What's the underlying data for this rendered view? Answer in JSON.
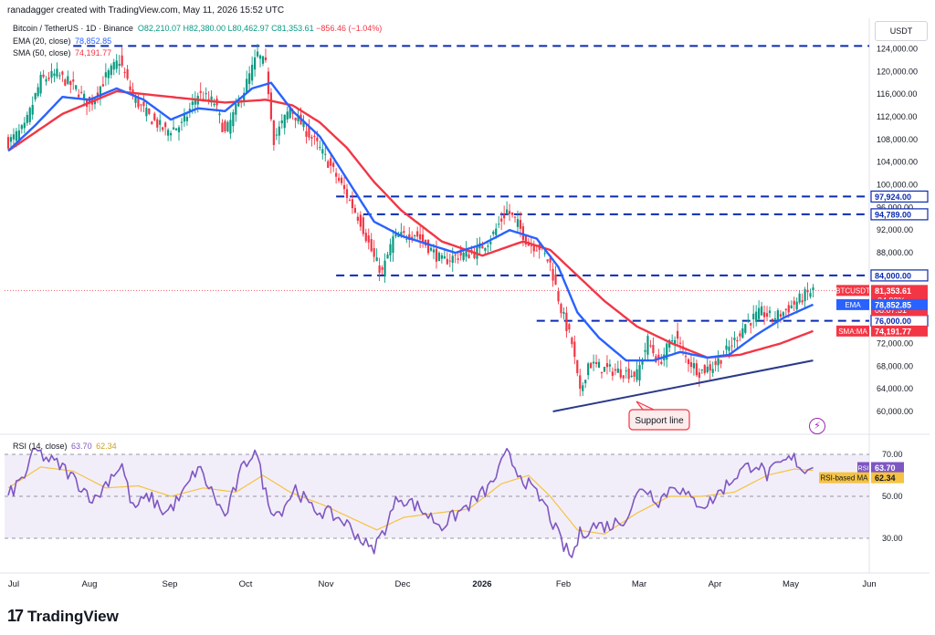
{
  "attribution": "ranadagger created with TradingView.com, May 11, 2026 15:52 UTC",
  "header": {
    "symbol": "Bitcoin / TetherUS · 1D · Binance",
    "ohlc": {
      "o": "O82,210.07",
      "h": "H82,380.00",
      "l": "L80,462.97",
      "c": "C81,353.61",
      "chg": "−856.46 (−1.04%)"
    },
    "ema_label": "EMA (20, close)",
    "ema_value": "78,852.85",
    "sma_label": "SMA (50, close)",
    "sma_value": "74,191.77",
    "rsi_label": "RSI (14, close)",
    "rsi_value": "63.70",
    "rsi_ma_value": "62.34"
  },
  "currency": "USDT",
  "brand": "TradingView",
  "colors": {
    "up": "#089981",
    "down": "#f23645",
    "ema": "#2962ff",
    "sma": "#f23645",
    "rsi": "#7e57c2",
    "rsi_ma": "#f5c242",
    "level": "#0b2bb0",
    "support": "#2a3a8a"
  },
  "icons": {
    "brand_logo": "tradingview-logo-icon",
    "alert": "lightning-alert-icon"
  },
  "chart_data": [
    {
      "type": "candlestick",
      "title": "Bitcoin / TetherUS · 1D · Binance",
      "x_ticks": [
        "Jul",
        "Aug",
        "Sep",
        "Oct",
        "Nov",
        "Dec",
        "2026",
        "Feb",
        "Mar",
        "Apr",
        "May",
        "Jun"
      ],
      "y_ticks": [
        "60,000.00",
        "64,000.00",
        "68,000.00",
        "72,000.00",
        "76,000.00",
        "80,000.00",
        "84,000.00",
        "88,000.00",
        "92,000.00",
        "96,000.00",
        "100,000.00",
        "104,000.00",
        "108,000.00",
        "112,000.00",
        "116,000.00",
        "120,000.00",
        "124,000.00"
      ],
      "ylim": [
        57000,
        127500
      ],
      "close_path": [
        {
          "d": 0,
          "p": 107500
        },
        {
          "d": 6,
          "p": 110000
        },
        {
          "d": 12,
          "p": 118500
        },
        {
          "d": 18,
          "p": 119500
        },
        {
          "d": 25,
          "p": 117000
        },
        {
          "d": 30,
          "p": 114000
        },
        {
          "d": 36,
          "p": 119000
        },
        {
          "d": 41,
          "p": 122000
        },
        {
          "d": 46,
          "p": 115500
        },
        {
          "d": 52,
          "p": 112000
        },
        {
          "d": 58,
          "p": 109500
        },
        {
          "d": 64,
          "p": 110500
        },
        {
          "d": 70,
          "p": 116000
        },
        {
          "d": 76,
          "p": 114500
        },
        {
          "d": 80,
          "p": 109000
        },
        {
          "d": 86,
          "p": 115500
        },
        {
          "d": 92,
          "p": 123000
        },
        {
          "d": 95,
          "p": 121000
        },
        {
          "d": 98,
          "p": 108000
        },
        {
          "d": 104,
          "p": 113500
        },
        {
          "d": 110,
          "p": 109500
        },
        {
          "d": 114,
          "p": 107000
        },
        {
          "d": 118,
          "p": 104000
        },
        {
          "d": 124,
          "p": 99000
        },
        {
          "d": 130,
          "p": 93500
        },
        {
          "d": 135,
          "p": 87000
        },
        {
          "d": 138,
          "p": 84500
        },
        {
          "d": 142,
          "p": 90500
        },
        {
          "d": 150,
          "p": 91500
        },
        {
          "d": 155,
          "p": 89000
        },
        {
          "d": 160,
          "p": 86500
        },
        {
          "d": 166,
          "p": 87500
        },
        {
          "d": 172,
          "p": 88000
        },
        {
          "d": 178,
          "p": 90500
        },
        {
          "d": 184,
          "p": 95500
        },
        {
          "d": 188,
          "p": 93000
        },
        {
          "d": 192,
          "p": 89500
        },
        {
          "d": 196,
          "p": 89000
        },
        {
          "d": 200,
          "p": 86000
        },
        {
          "d": 204,
          "p": 78000
        },
        {
          "d": 208,
          "p": 72000
        },
        {
          "d": 211,
          "p": 63000
        },
        {
          "d": 214,
          "p": 68500
        },
        {
          "d": 220,
          "p": 67500
        },
        {
          "d": 226,
          "p": 67000
        },
        {
          "d": 232,
          "p": 66500
        },
        {
          "d": 236,
          "p": 72500
        },
        {
          "d": 240,
          "p": 68500
        },
        {
          "d": 246,
          "p": 73500
        },
        {
          "d": 250,
          "p": 69500
        },
        {
          "d": 255,
          "p": 67000
        },
        {
          "d": 260,
          "p": 68000
        },
        {
          "d": 264,
          "p": 70000
        },
        {
          "d": 268,
          "p": 72500
        },
        {
          "d": 272,
          "p": 75500
        },
        {
          "d": 278,
          "p": 77500
        },
        {
          "d": 282,
          "p": 76500
        },
        {
          "d": 286,
          "p": 77500
        },
        {
          "d": 290,
          "p": 79000
        },
        {
          "d": 294,
          "p": 80500
        },
        {
          "d": 297,
          "p": 81354
        }
      ],
      "ema20_path": [
        {
          "d": 0,
          "p": 106000
        },
        {
          "d": 10,
          "p": 110500
        },
        {
          "d": 20,
          "p": 115500
        },
        {
          "d": 30,
          "p": 115000
        },
        {
          "d": 40,
          "p": 117000
        },
        {
          "d": 50,
          "p": 115000
        },
        {
          "d": 60,
          "p": 111500
        },
        {
          "d": 70,
          "p": 113500
        },
        {
          "d": 80,
          "p": 113000
        },
        {
          "d": 90,
          "p": 117000
        },
        {
          "d": 97,
          "p": 118000
        },
        {
          "d": 105,
          "p": 113000
        },
        {
          "d": 115,
          "p": 108500
        },
        {
          "d": 125,
          "p": 101000
        },
        {
          "d": 135,
          "p": 93500
        },
        {
          "d": 145,
          "p": 91000
        },
        {
          "d": 155,
          "p": 89500
        },
        {
          "d": 165,
          "p": 88000
        },
        {
          "d": 175,
          "p": 89500
        },
        {
          "d": 185,
          "p": 92000
        },
        {
          "d": 195,
          "p": 90500
        },
        {
          "d": 203,
          "p": 85500
        },
        {
          "d": 210,
          "p": 77500
        },
        {
          "d": 218,
          "p": 73000
        },
        {
          "d": 228,
          "p": 69000
        },
        {
          "d": 238,
          "p": 69000
        },
        {
          "d": 248,
          "p": 70500
        },
        {
          "d": 258,
          "p": 69500
        },
        {
          "d": 266,
          "p": 70000
        },
        {
          "d": 276,
          "p": 73500
        },
        {
          "d": 286,
          "p": 76500
        },
        {
          "d": 297,
          "p": 78853
        }
      ],
      "sma50_path": [
        {
          "d": 0,
          "p": 106000
        },
        {
          "d": 20,
          "p": 112500
        },
        {
          "d": 40,
          "p": 116500
        },
        {
          "d": 60,
          "p": 115500
        },
        {
          "d": 80,
          "p": 114500
        },
        {
          "d": 95,
          "p": 115000
        },
        {
          "d": 105,
          "p": 114000
        },
        {
          "d": 115,
          "p": 111000
        },
        {
          "d": 125,
          "p": 106500
        },
        {
          "d": 135,
          "p": 100500
        },
        {
          "d": 145,
          "p": 95500
        },
        {
          "d": 160,
          "p": 90000
        },
        {
          "d": 175,
          "p": 87500
        },
        {
          "d": 190,
          "p": 90000
        },
        {
          "d": 200,
          "p": 88500
        },
        {
          "d": 210,
          "p": 84000
        },
        {
          "d": 220,
          "p": 79500
        },
        {
          "d": 232,
          "p": 75000
        },
        {
          "d": 245,
          "p": 72000
        },
        {
          "d": 258,
          "p": 69500
        },
        {
          "d": 270,
          "p": 70000
        },
        {
          "d": 285,
          "p": 72000
        },
        {
          "d": 297,
          "p": 74192
        }
      ],
      "levels": [
        {
          "price": 124500,
          "from_day": 24,
          "to_day": 300
        },
        {
          "price": 97924,
          "from_day": 121,
          "to_day": 300,
          "label": "97,924.00"
        },
        {
          "price": 94789,
          "from_day": 131,
          "to_day": 300,
          "label": "94,789.00"
        },
        {
          "price": 84000,
          "from_day": 121,
          "to_day": 300,
          "label": "84,000.00"
        },
        {
          "price": 76000,
          "from_day": 195,
          "to_day": 300,
          "label": "76,000.00"
        }
      ],
      "support_line": {
        "from": {
          "d": 201,
          "p": 60000
        },
        "to": {
          "d": 297,
          "p": 69000
        },
        "label": "Support line"
      },
      "price_tags": [
        {
          "name": "BTCUSDT",
          "price": 81353.61,
          "value": "81,353.61",
          "sub": "-24.92%",
          "sub2": "08:07:51",
          "color": "#f23645"
        },
        {
          "name": "EMA",
          "price": 78852.85,
          "value": "78,852.85",
          "color": "#2962ff"
        },
        {
          "name": "SMA:MA",
          "price": 74191.77,
          "value": "74,191.77",
          "color": "#f23645"
        }
      ]
    },
    {
      "type": "line",
      "title": "RSI (14, close)",
      "y_ticks": [
        "30.00",
        "50.00",
        "70.00"
      ],
      "ylim": [
        15,
        82
      ],
      "bands": {
        "upper": 70,
        "middle": 50,
        "lower": 30
      },
      "series": [
        {
          "name": "RSI",
          "values_path": [
            {
              "d": 0,
              "v": 50
            },
            {
              "d": 6,
              "v": 60
            },
            {
              "d": 10,
              "v": 72
            },
            {
              "d": 14,
              "v": 68
            },
            {
              "d": 20,
              "v": 64
            },
            {
              "d": 26,
              "v": 56
            },
            {
              "d": 32,
              "v": 48
            },
            {
              "d": 38,
              "v": 60
            },
            {
              "d": 42,
              "v": 65
            },
            {
              "d": 46,
              "v": 44
            },
            {
              "d": 52,
              "v": 50
            },
            {
              "d": 58,
              "v": 42
            },
            {
              "d": 64,
              "v": 50
            },
            {
              "d": 70,
              "v": 64
            },
            {
              "d": 76,
              "v": 50
            },
            {
              "d": 80,
              "v": 40
            },
            {
              "d": 86,
              "v": 62
            },
            {
              "d": 91,
              "v": 73
            },
            {
              "d": 96,
              "v": 46
            },
            {
              "d": 100,
              "v": 42
            },
            {
              "d": 106,
              "v": 54
            },
            {
              "d": 112,
              "v": 44
            },
            {
              "d": 118,
              "v": 42
            },
            {
              "d": 124,
              "v": 38
            },
            {
              "d": 130,
              "v": 30
            },
            {
              "d": 134,
              "v": 24
            },
            {
              "d": 138,
              "v": 32
            },
            {
              "d": 144,
              "v": 50
            },
            {
              "d": 150,
              "v": 46
            },
            {
              "d": 156,
              "v": 40
            },
            {
              "d": 160,
              "v": 36
            },
            {
              "d": 166,
              "v": 42
            },
            {
              "d": 172,
              "v": 48
            },
            {
              "d": 178,
              "v": 55
            },
            {
              "d": 184,
              "v": 70
            },
            {
              "d": 188,
              "v": 62
            },
            {
              "d": 194,
              "v": 52
            },
            {
              "d": 198,
              "v": 46
            },
            {
              "d": 202,
              "v": 34
            },
            {
              "d": 205,
              "v": 26
            },
            {
              "d": 208,
              "v": 21
            },
            {
              "d": 211,
              "v": 32
            },
            {
              "d": 216,
              "v": 36
            },
            {
              "d": 222,
              "v": 36
            },
            {
              "d": 228,
              "v": 40
            },
            {
              "d": 234,
              "v": 55
            },
            {
              "d": 240,
              "v": 48
            },
            {
              "d": 246,
              "v": 56
            },
            {
              "d": 252,
              "v": 48
            },
            {
              "d": 258,
              "v": 46
            },
            {
              "d": 264,
              "v": 54
            },
            {
              "d": 270,
              "v": 62
            },
            {
              "d": 276,
              "v": 66
            },
            {
              "d": 280,
              "v": 60
            },
            {
              "d": 286,
              "v": 66
            },
            {
              "d": 290,
              "v": 68
            },
            {
              "d": 294,
              "v": 62
            },
            {
              "d": 297,
              "v": 63.7
            }
          ]
        },
        {
          "name": "RSI-based MA",
          "values_path": [
            {
              "d": 0,
              "v": 54
            },
            {
              "d": 12,
              "v": 64
            },
            {
              "d": 24,
              "v": 62
            },
            {
              "d": 36,
              "v": 54
            },
            {
              "d": 48,
              "v": 55
            },
            {
              "d": 60,
              "v": 50
            },
            {
              "d": 72,
              "v": 54
            },
            {
              "d": 84,
              "v": 52
            },
            {
              "d": 94,
              "v": 60
            },
            {
              "d": 104,
              "v": 52
            },
            {
              "d": 116,
              "v": 46
            },
            {
              "d": 126,
              "v": 40
            },
            {
              "d": 136,
              "v": 34
            },
            {
              "d": 146,
              "v": 40
            },
            {
              "d": 158,
              "v": 42
            },
            {
              "d": 170,
              "v": 44
            },
            {
              "d": 182,
              "v": 56
            },
            {
              "d": 192,
              "v": 60
            },
            {
              "d": 200,
              "v": 50
            },
            {
              "d": 210,
              "v": 34
            },
            {
              "d": 220,
              "v": 32
            },
            {
              "d": 232,
              "v": 42
            },
            {
              "d": 244,
              "v": 50
            },
            {
              "d": 256,
              "v": 50
            },
            {
              "d": 268,
              "v": 52
            },
            {
              "d": 280,
              "v": 60
            },
            {
              "d": 290,
              "v": 63
            },
            {
              "d": 297,
              "v": 62.34
            }
          ]
        }
      ],
      "price_tags": [
        {
          "name": "RSI",
          "value": "63.70",
          "v": 63.7,
          "color": "#7e57c2"
        },
        {
          "name": "RSI-based MA",
          "value": "62.34",
          "v": 62.34,
          "color": "#f5c242"
        }
      ]
    }
  ]
}
